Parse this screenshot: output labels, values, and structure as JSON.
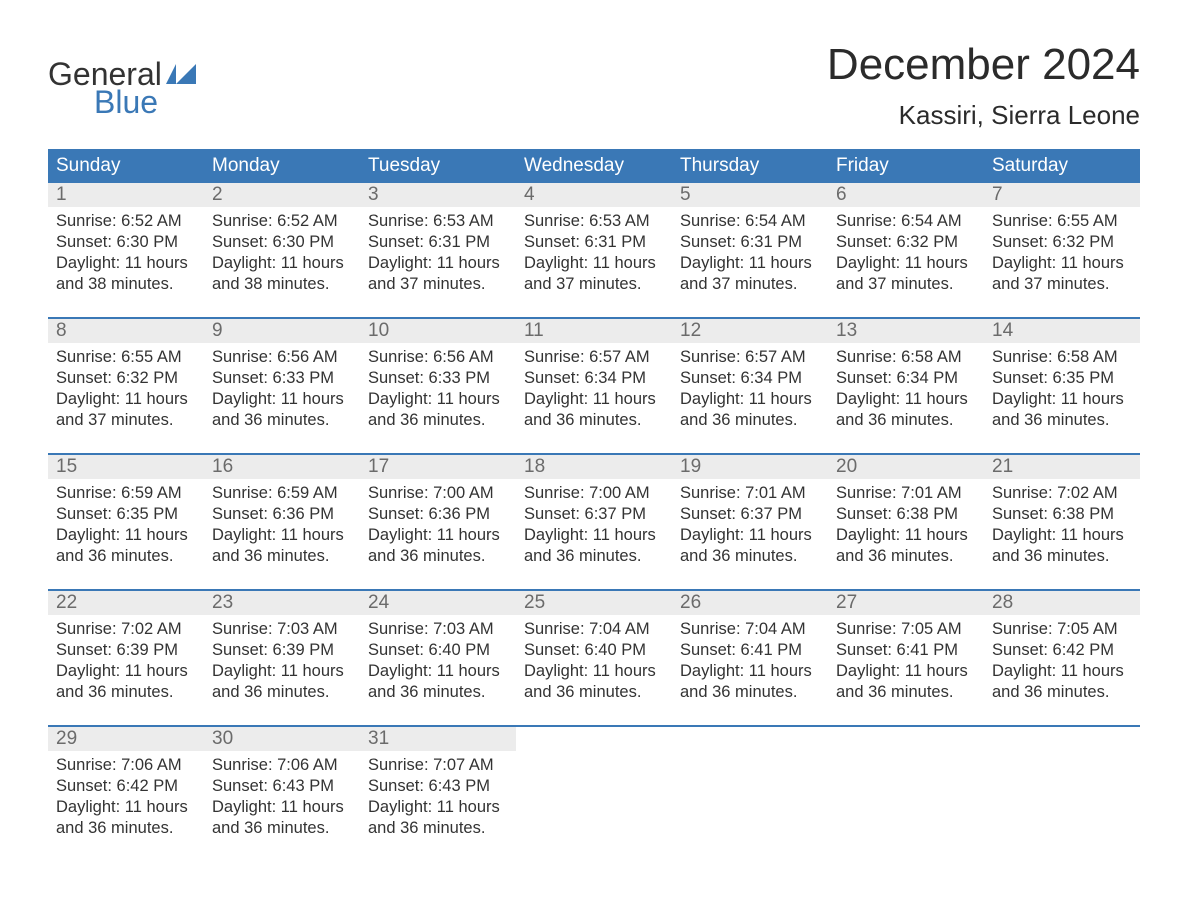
{
  "logo": {
    "text_general": "General",
    "text_blue": "Blue",
    "flag_color": "#3a78b6"
  },
  "title": "December 2024",
  "location": "Kassiri, Sierra Leone",
  "colors": {
    "header_bg": "#3a78b6",
    "header_text": "#ffffff",
    "daynum_bg": "#ececec",
    "daynum_text": "#6b6b6b",
    "body_text": "#333333",
    "week_border": "#3a78b6",
    "page_bg": "#ffffff"
  },
  "day_headers": [
    "Sunday",
    "Monday",
    "Tuesday",
    "Wednesday",
    "Thursday",
    "Friday",
    "Saturday"
  ],
  "weeks": [
    [
      {
        "n": "1",
        "sunrise": "Sunrise: 6:52 AM",
        "sunset": "Sunset: 6:30 PM",
        "dl1": "Daylight: 11 hours",
        "dl2": "and 38 minutes."
      },
      {
        "n": "2",
        "sunrise": "Sunrise: 6:52 AM",
        "sunset": "Sunset: 6:30 PM",
        "dl1": "Daylight: 11 hours",
        "dl2": "and 38 minutes."
      },
      {
        "n": "3",
        "sunrise": "Sunrise: 6:53 AM",
        "sunset": "Sunset: 6:31 PM",
        "dl1": "Daylight: 11 hours",
        "dl2": "and 37 minutes."
      },
      {
        "n": "4",
        "sunrise": "Sunrise: 6:53 AM",
        "sunset": "Sunset: 6:31 PM",
        "dl1": "Daylight: 11 hours",
        "dl2": "and 37 minutes."
      },
      {
        "n": "5",
        "sunrise": "Sunrise: 6:54 AM",
        "sunset": "Sunset: 6:31 PM",
        "dl1": "Daylight: 11 hours",
        "dl2": "and 37 minutes."
      },
      {
        "n": "6",
        "sunrise": "Sunrise: 6:54 AM",
        "sunset": "Sunset: 6:32 PM",
        "dl1": "Daylight: 11 hours",
        "dl2": "and 37 minutes."
      },
      {
        "n": "7",
        "sunrise": "Sunrise: 6:55 AM",
        "sunset": "Sunset: 6:32 PM",
        "dl1": "Daylight: 11 hours",
        "dl2": "and 37 minutes."
      }
    ],
    [
      {
        "n": "8",
        "sunrise": "Sunrise: 6:55 AM",
        "sunset": "Sunset: 6:32 PM",
        "dl1": "Daylight: 11 hours",
        "dl2": "and 37 minutes."
      },
      {
        "n": "9",
        "sunrise": "Sunrise: 6:56 AM",
        "sunset": "Sunset: 6:33 PM",
        "dl1": "Daylight: 11 hours",
        "dl2": "and 36 minutes."
      },
      {
        "n": "10",
        "sunrise": "Sunrise: 6:56 AM",
        "sunset": "Sunset: 6:33 PM",
        "dl1": "Daylight: 11 hours",
        "dl2": "and 36 minutes."
      },
      {
        "n": "11",
        "sunrise": "Sunrise: 6:57 AM",
        "sunset": "Sunset: 6:34 PM",
        "dl1": "Daylight: 11 hours",
        "dl2": "and 36 minutes."
      },
      {
        "n": "12",
        "sunrise": "Sunrise: 6:57 AM",
        "sunset": "Sunset: 6:34 PM",
        "dl1": "Daylight: 11 hours",
        "dl2": "and 36 minutes."
      },
      {
        "n": "13",
        "sunrise": "Sunrise: 6:58 AM",
        "sunset": "Sunset: 6:34 PM",
        "dl1": "Daylight: 11 hours",
        "dl2": "and 36 minutes."
      },
      {
        "n": "14",
        "sunrise": "Sunrise: 6:58 AM",
        "sunset": "Sunset: 6:35 PM",
        "dl1": "Daylight: 11 hours",
        "dl2": "and 36 minutes."
      }
    ],
    [
      {
        "n": "15",
        "sunrise": "Sunrise: 6:59 AM",
        "sunset": "Sunset: 6:35 PM",
        "dl1": "Daylight: 11 hours",
        "dl2": "and 36 minutes."
      },
      {
        "n": "16",
        "sunrise": "Sunrise: 6:59 AM",
        "sunset": "Sunset: 6:36 PM",
        "dl1": "Daylight: 11 hours",
        "dl2": "and 36 minutes."
      },
      {
        "n": "17",
        "sunrise": "Sunrise: 7:00 AM",
        "sunset": "Sunset: 6:36 PM",
        "dl1": "Daylight: 11 hours",
        "dl2": "and 36 minutes."
      },
      {
        "n": "18",
        "sunrise": "Sunrise: 7:00 AM",
        "sunset": "Sunset: 6:37 PM",
        "dl1": "Daylight: 11 hours",
        "dl2": "and 36 minutes."
      },
      {
        "n": "19",
        "sunrise": "Sunrise: 7:01 AM",
        "sunset": "Sunset: 6:37 PM",
        "dl1": "Daylight: 11 hours",
        "dl2": "and 36 minutes."
      },
      {
        "n": "20",
        "sunrise": "Sunrise: 7:01 AM",
        "sunset": "Sunset: 6:38 PM",
        "dl1": "Daylight: 11 hours",
        "dl2": "and 36 minutes."
      },
      {
        "n": "21",
        "sunrise": "Sunrise: 7:02 AM",
        "sunset": "Sunset: 6:38 PM",
        "dl1": "Daylight: 11 hours",
        "dl2": "and 36 minutes."
      }
    ],
    [
      {
        "n": "22",
        "sunrise": "Sunrise: 7:02 AM",
        "sunset": "Sunset: 6:39 PM",
        "dl1": "Daylight: 11 hours",
        "dl2": "and 36 minutes."
      },
      {
        "n": "23",
        "sunrise": "Sunrise: 7:03 AM",
        "sunset": "Sunset: 6:39 PM",
        "dl1": "Daylight: 11 hours",
        "dl2": "and 36 minutes."
      },
      {
        "n": "24",
        "sunrise": "Sunrise: 7:03 AM",
        "sunset": "Sunset: 6:40 PM",
        "dl1": "Daylight: 11 hours",
        "dl2": "and 36 minutes."
      },
      {
        "n": "25",
        "sunrise": "Sunrise: 7:04 AM",
        "sunset": "Sunset: 6:40 PM",
        "dl1": "Daylight: 11 hours",
        "dl2": "and 36 minutes."
      },
      {
        "n": "26",
        "sunrise": "Sunrise: 7:04 AM",
        "sunset": "Sunset: 6:41 PM",
        "dl1": "Daylight: 11 hours",
        "dl2": "and 36 minutes."
      },
      {
        "n": "27",
        "sunrise": "Sunrise: 7:05 AM",
        "sunset": "Sunset: 6:41 PM",
        "dl1": "Daylight: 11 hours",
        "dl2": "and 36 minutes."
      },
      {
        "n": "28",
        "sunrise": "Sunrise: 7:05 AM",
        "sunset": "Sunset: 6:42 PM",
        "dl1": "Daylight: 11 hours",
        "dl2": "and 36 minutes."
      }
    ],
    [
      {
        "n": "29",
        "sunrise": "Sunrise: 7:06 AM",
        "sunset": "Sunset: 6:42 PM",
        "dl1": "Daylight: 11 hours",
        "dl2": "and 36 minutes."
      },
      {
        "n": "30",
        "sunrise": "Sunrise: 7:06 AM",
        "sunset": "Sunset: 6:43 PM",
        "dl1": "Daylight: 11 hours",
        "dl2": "and 36 minutes."
      },
      {
        "n": "31",
        "sunrise": "Sunrise: 7:07 AM",
        "sunset": "Sunset: 6:43 PM",
        "dl1": "Daylight: 11 hours",
        "dl2": "and 36 minutes."
      },
      {
        "empty": true
      },
      {
        "empty": true
      },
      {
        "empty": true
      },
      {
        "empty": true
      }
    ]
  ]
}
